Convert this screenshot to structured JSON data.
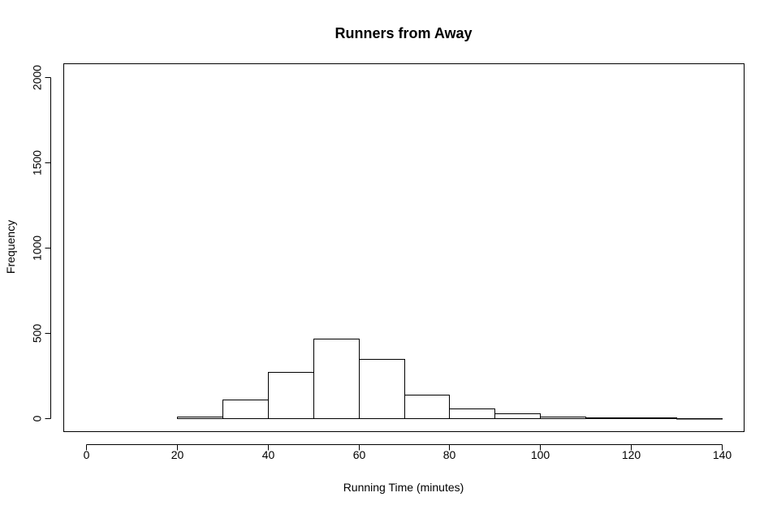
{
  "chart_data": {
    "type": "bar",
    "subtype": "histogram",
    "title": "Runners from Away",
    "xlabel": "Running Time (minutes)",
    "ylabel": "Frequency",
    "bins": [
      {
        "from": 20,
        "to": 30,
        "count": 10
      },
      {
        "from": 30,
        "to": 40,
        "count": 110
      },
      {
        "from": 40,
        "to": 50,
        "count": 272
      },
      {
        "from": 50,
        "to": 60,
        "count": 465
      },
      {
        "from": 60,
        "to": 70,
        "count": 345
      },
      {
        "from": 70,
        "to": 80,
        "count": 135
      },
      {
        "from": 80,
        "to": 90,
        "count": 55
      },
      {
        "from": 90,
        "to": 100,
        "count": 25
      },
      {
        "from": 100,
        "to": 110,
        "count": 10
      },
      {
        "from": 110,
        "to": 120,
        "count": 5
      },
      {
        "from": 120,
        "to": 130,
        "count": 5
      },
      {
        "from": 130,
        "to": 140,
        "count": 1
      }
    ],
    "xlim": [
      -5,
      145
    ],
    "ylim": [
      -80,
      2080
    ],
    "x_ticks": [
      0,
      20,
      40,
      60,
      80,
      100,
      120,
      140
    ],
    "y_ticks": [
      0,
      500,
      1000,
      1500,
      2000
    ],
    "grid": false,
    "bar_fill": "#ffffff",
    "bar_stroke": "#000000"
  }
}
